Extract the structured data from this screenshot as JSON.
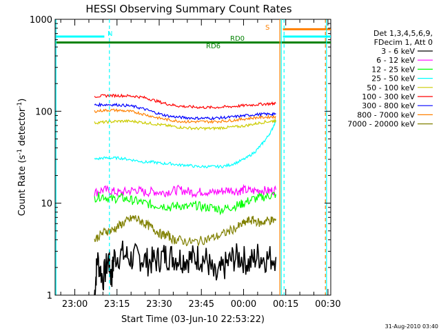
{
  "chart_data": {
    "type": "line",
    "title": "HESSI Observing Summary Count Rates",
    "xlabel": "Start Time (03-Jun-10 22:53:22)",
    "ylabel_main": "Count Rate (s",
    "ylabel_sup1": "-1",
    "ylabel_mid": " detector",
    "ylabel_sup2": "-1",
    "ylabel_end": ")",
    "yscale": "log",
    "ylim": [
      1,
      1000
    ],
    "xlim_minutes": [
      -7,
      91
    ],
    "x_tick_labels": [
      "23:00",
      "23:15",
      "23:30",
      "23:45",
      "00:00",
      "00:15",
      "00:30"
    ],
    "x_tick_minutes": [
      0,
      15,
      30,
      45,
      60,
      75,
      90
    ],
    "y_tick_labels": [
      "1",
      "10",
      "100",
      "1000"
    ],
    "y_tick_values": [
      1,
      10,
      100,
      1000
    ],
    "legend_header": [
      "Det 1,3,4,5,6,9,",
      "FDecim 1, Att 0"
    ],
    "timestamp": "31-Aug-2010 03:40",
    "annotations": {
      "N": "N",
      "S": "S",
      "RD0": "RD0",
      "RD6": "RD6"
    },
    "series": [
      {
        "name": "3 - 6 keV",
        "color": "#000000",
        "x": [
          7,
          8,
          10,
          12,
          13,
          14,
          17,
          20,
          23,
          26,
          29,
          32,
          35,
          38,
          41,
          44,
          47,
          50,
          53,
          56,
          59,
          62,
          65,
          68,
          71.5
        ],
        "y": [
          1.0,
          2.5,
          1.5,
          2.5,
          1.5,
          2.6,
          2.8,
          2.5,
          2.6,
          2.3,
          2.4,
          2.7,
          2.6,
          2.5,
          2.5,
          2.6,
          2.4,
          1.5,
          2.0,
          2.5,
          2.6,
          2.2,
          2.7,
          2.5,
          2.6
        ]
      },
      {
        "name": "6 - 12 keV",
        "color": "#ff00ff",
        "x": [
          7,
          10,
          13,
          16,
          19,
          22,
          25,
          28,
          31,
          34,
          37,
          40,
          43,
          46,
          49,
          52,
          55,
          58,
          60,
          63,
          66,
          69,
          71.5
        ],
        "y": [
          13,
          14,
          13.5,
          13,
          13.5,
          14,
          13,
          13.5,
          13,
          13.5,
          14,
          13.5,
          13,
          13.5,
          13,
          13.5,
          14,
          13.5,
          14,
          13.5,
          14,
          13.5,
          14
        ]
      },
      {
        "name": "12 - 25 keV",
        "color": "#00ff00",
        "x": [
          7,
          10,
          13,
          16,
          19,
          22,
          25,
          28,
          31,
          34,
          37,
          40,
          43,
          46,
          49,
          52,
          55,
          58,
          60,
          63,
          66,
          69,
          71.5
        ],
        "y": [
          11.5,
          12,
          11,
          11.5,
          11,
          10.5,
          10,
          9.5,
          9.5,
          9,
          9.5,
          9,
          9.5,
          9,
          9,
          8.5,
          9,
          9.5,
          10,
          11,
          11.5,
          12,
          12.5
        ]
      },
      {
        "name": "25 - 50 keV",
        "color": "#00ffff",
        "x": [
          7,
          10,
          13,
          16,
          19,
          22,
          25,
          28,
          31,
          34,
          37,
          40,
          43,
          46,
          49,
          52,
          55,
          58,
          61,
          64,
          66,
          68,
          70,
          71.5
        ],
        "y": [
          30,
          31,
          31,
          31,
          30,
          29,
          28,
          28,
          27,
          27,
          26,
          26,
          25,
          25,
          25,
          25,
          26,
          28,
          31,
          36,
          42,
          50,
          62,
          80
        ]
      },
      {
        "name": "50 - 100 keV",
        "color": "#cccc00",
        "x": [
          7,
          10,
          13,
          16,
          19,
          22,
          25,
          28,
          31,
          34,
          37,
          40,
          43,
          46,
          49,
          52,
          55,
          58,
          61,
          64,
          67,
          70,
          71.5
        ],
        "y": [
          75,
          76,
          77,
          78,
          78,
          77,
          75,
          73,
          71,
          69,
          67,
          66,
          65,
          65,
          65,
          66,
          67,
          68,
          70,
          73,
          76,
          78,
          79
        ]
      },
      {
        "name": "100 - 300 keV",
        "color": "#ff0000",
        "x": [
          7,
          10,
          13,
          16,
          19,
          22,
          25,
          28,
          31,
          34,
          37,
          40,
          43,
          46,
          49,
          52,
          55,
          58,
          61,
          64,
          67,
          70,
          71.5
        ],
        "y": [
          145,
          147,
          148,
          148,
          147,
          145,
          140,
          132,
          124,
          118,
          114,
          112,
          111,
          110,
          110,
          111,
          112,
          114,
          116,
          118,
          120,
          121,
          122
        ]
      },
      {
        "name": "300 - 800 keV",
        "color": "#0000ff",
        "x": [
          7,
          10,
          13,
          16,
          19,
          22,
          25,
          28,
          31,
          34,
          37,
          40,
          43,
          46,
          49,
          52,
          55,
          58,
          61,
          64,
          67,
          70,
          71.5
        ],
        "y": [
          117,
          118,
          118,
          117,
          115,
          111,
          105,
          98,
          92,
          88,
          86,
          85,
          84,
          84,
          84,
          85,
          86,
          88,
          90,
          92,
          93,
          93,
          93
        ]
      },
      {
        "name": "800 - 7000 keV",
        "color": "#ff8000",
        "x": [
          7,
          10,
          13,
          16,
          19,
          22,
          25,
          28,
          31,
          34,
          37,
          40,
          43,
          46,
          49,
          52,
          55,
          58,
          61,
          64,
          67,
          70,
          71.5
        ],
        "y": [
          100,
          102,
          103,
          102,
          100,
          97,
          92,
          87,
          83,
          80,
          78,
          77,
          77,
          77,
          77,
          78,
          79,
          81,
          83,
          85,
          86,
          87,
          87
        ]
      },
      {
        "name": "7000 - 20000 keV",
        "color": "#808000",
        "x": [
          7,
          9,
          11,
          13,
          15,
          17,
          19,
          21,
          23,
          25,
          27,
          29,
          31,
          33,
          35,
          37,
          40,
          43,
          46,
          49,
          52,
          55,
          58,
          60,
          62,
          64,
          66,
          68,
          70,
          71.5
        ],
        "y": [
          4,
          4.5,
          5,
          5,
          5.5,
          6,
          6.5,
          7,
          6.5,
          6,
          5.5,
          5,
          4.5,
          4.5,
          4,
          4,
          3.8,
          3.8,
          4,
          4.2,
          4.5,
          5,
          5.5,
          6,
          6.5,
          6.5,
          6,
          6.5,
          6.5,
          6.5
        ]
      }
    ],
    "flag_lines": [
      {
        "label": "N",
        "color": "#00ffff",
        "y": 650,
        "x_start": -6.7,
        "x_end": 10.5
      },
      {
        "label": "RD6",
        "color": "#008000",
        "y": 560,
        "x_start": -7,
        "x_end": 91
      },
      {
        "label": "S",
        "color": "#ff8000",
        "y": 780,
        "x_start": 74,
        "x_end": 91
      },
      {
        "label": "",
        "color": "#00ffff",
        "y": 650,
        "x_start": 74,
        "x_end": 91
      }
    ],
    "vertical_markers": [
      {
        "color": "#00ffff",
        "style": "solid",
        "x": -6.7
      },
      {
        "color": "#00ffff",
        "style": "dashed",
        "x": 12.3
      },
      {
        "color": "#ff8000",
        "style": "solid",
        "x": 72.9
      },
      {
        "color": "#00ffff",
        "style": "solid",
        "x": 73.4
      },
      {
        "color": "#00ffff",
        "style": "dashed",
        "x": 74.4
      },
      {
        "color": "#ff8000",
        "style": "dashed",
        "x": 89.1
      },
      {
        "color": "#00ffff",
        "style": "solid",
        "x": 89.5
      }
    ]
  }
}
